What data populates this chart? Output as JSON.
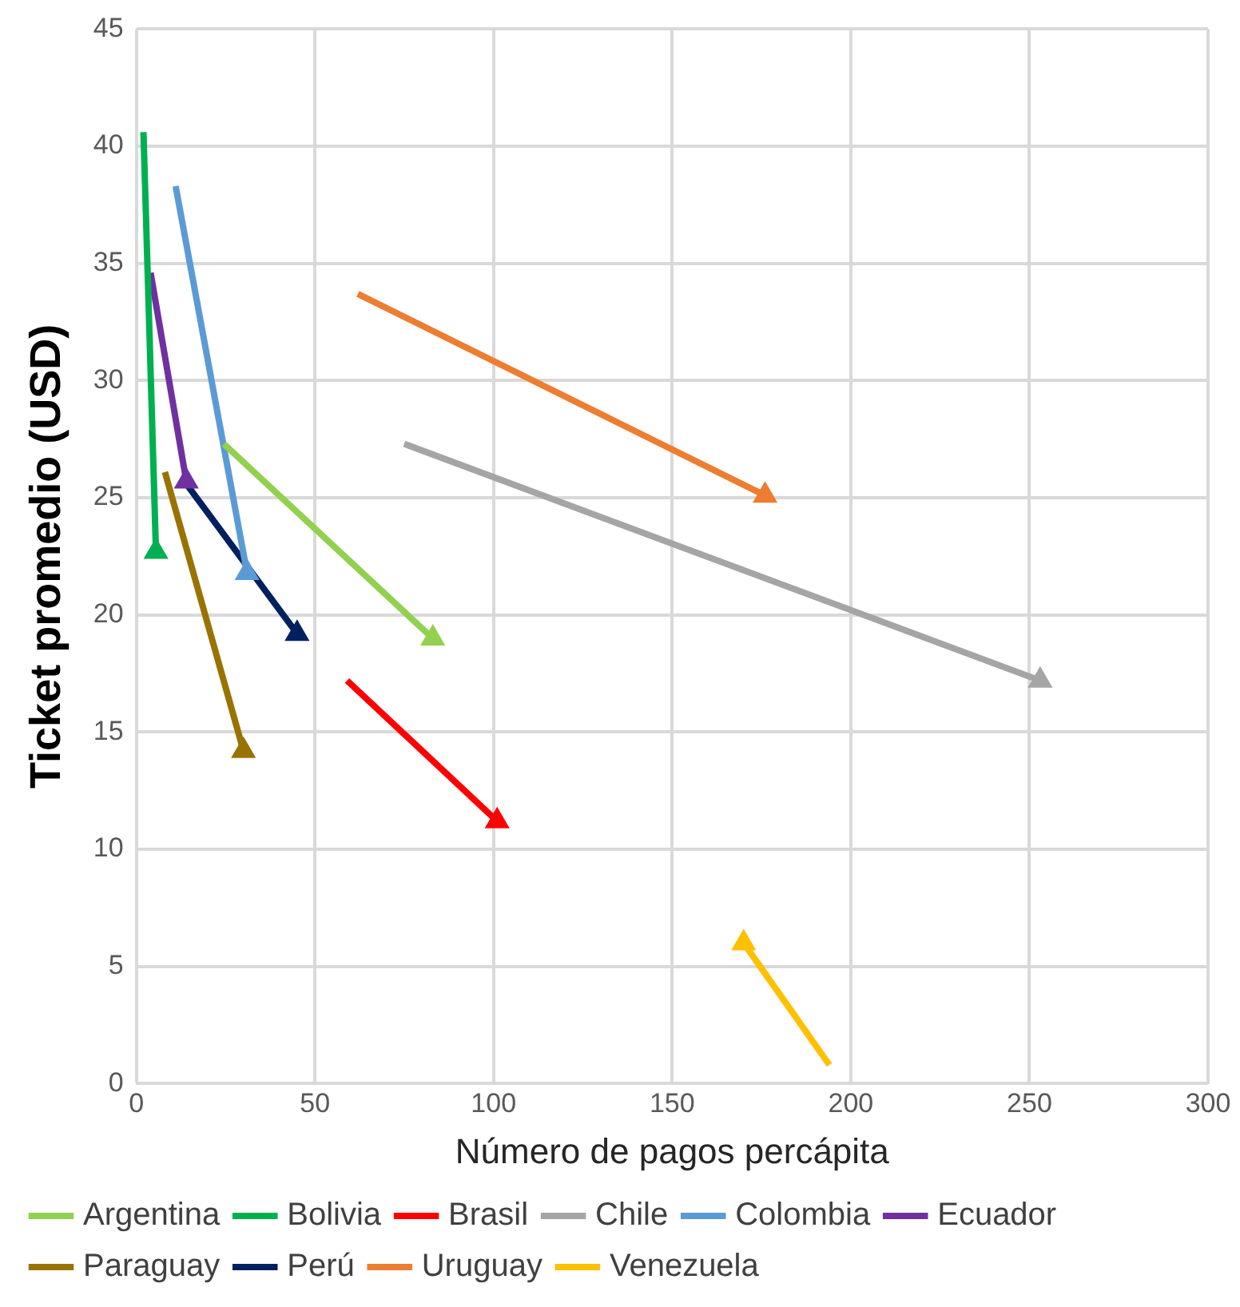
{
  "chart_data": {
    "type": "line",
    "xlabel": "Número de pagos percápita",
    "ylabel": "Ticket promedio (USD)",
    "xlim": [
      0,
      300
    ],
    "xticks": [
      0,
      50,
      100,
      150,
      200,
      250,
      300
    ],
    "ylim": [
      0,
      45
    ],
    "yticks": [
      0,
      5,
      10,
      15,
      20,
      25,
      30,
      35,
      40,
      45
    ],
    "grid": true,
    "legend": "bottom",
    "marker": "triangle",
    "series": [
      {
        "name": "Argentina",
        "color": "#92d050",
        "x": [
          24.5,
          83
        ],
        "values": [
          27.3,
          19.0
        ]
      },
      {
        "name": "Bolivia",
        "color": "#00b050",
        "x": [
          2,
          5.5
        ],
        "values": [
          40.6,
          22.7
        ]
      },
      {
        "name": "Brasil",
        "color": "#ff0000",
        "x": [
          59,
          101
        ],
        "values": [
          17.2,
          11.2
        ]
      },
      {
        "name": "Chile",
        "color": "#a5a5a5",
        "x": [
          75,
          253
        ],
        "values": [
          27.3,
          17.2
        ]
      },
      {
        "name": "Colombia",
        "color": "#5b9bd5",
        "x": [
          11,
          31
        ],
        "values": [
          38.3,
          21.8
        ]
      },
      {
        "name": "Ecuador",
        "color": "#7030a0",
        "x": [
          4,
          14
        ],
        "values": [
          34.6,
          25.7
        ]
      },
      {
        "name": "Paraguay",
        "color": "#997300",
        "x": [
          8,
          30
        ],
        "values": [
          26.1,
          14.2
        ]
      },
      {
        "name": "Perú",
        "color": "#002060",
        "x": [
          13,
          45
        ],
        "values": [
          25.8,
          19.2
        ]
      },
      {
        "name": "Uruguay",
        "color": "#ed7d31",
        "x": [
          62,
          176
        ],
        "values": [
          33.7,
          25.1
        ]
      },
      {
        "name": "Venezuela",
        "color": "#ffc000",
        "x": [
          194,
          170
        ],
        "values": [
          0.8,
          6.0
        ]
      }
    ]
  }
}
